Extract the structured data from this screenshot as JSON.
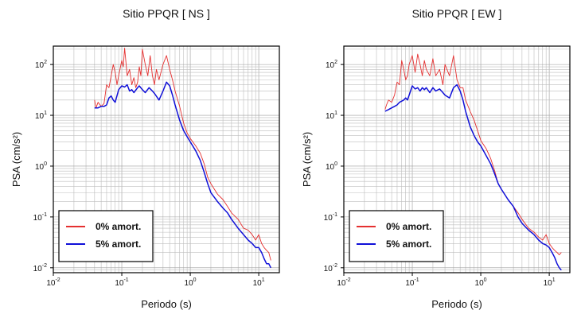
{
  "chart_data": [
    {
      "type": "line",
      "title": "Sitio PPQR [ NS ]",
      "xlabel": "Periodo (s)",
      "ylabel": "PSA (cm/s²)",
      "x_scale": "log",
      "y_scale": "log",
      "xlim": [
        0.01,
        20
      ],
      "ylim": [
        0.008,
        230
      ],
      "x_ticks": [
        {
          "value": 0.01,
          "base": "10",
          "exp": "-2"
        },
        {
          "value": 0.1,
          "base": "10",
          "exp": "-1"
        },
        {
          "value": 1,
          "base": "10",
          "exp": "0"
        },
        {
          "value": 10,
          "base": "10",
          "exp": "1"
        }
      ],
      "y_ticks": [
        {
          "value": 0.01,
          "base": "10",
          "exp": "-2"
        },
        {
          "value": 0.1,
          "base": "10",
          "exp": "-1"
        },
        {
          "value": 1,
          "base": "10",
          "exp": "0"
        },
        {
          "value": 10,
          "base": "10",
          "exp": "1"
        },
        {
          "value": 100,
          "base": "10",
          "exp": "2"
        }
      ],
      "grid": true,
      "legend_position": "bottom-left",
      "series": [
        {
          "name": "0% amort.",
          "color": "#e53030",
          "x": [
            0.04,
            0.042,
            0.045,
            0.05,
            0.055,
            0.06,
            0.065,
            0.07,
            0.075,
            0.08,
            0.085,
            0.09,
            0.1,
            0.105,
            0.11,
            0.12,
            0.13,
            0.14,
            0.15,
            0.16,
            0.17,
            0.18,
            0.19,
            0.2,
            0.22,
            0.24,
            0.26,
            0.28,
            0.3,
            0.32,
            0.35,
            0.4,
            0.45,
            0.5,
            0.55,
            0.6,
            0.7,
            0.8,
            0.9,
            1.0,
            1.2,
            1.4,
            1.6,
            1.8,
            2.0,
            2.5,
            3.0,
            3.5,
            4.0,
            5.0,
            6.0,
            7.0,
            8.0,
            9.0,
            10.0,
            11.0,
            12.0,
            13.0,
            14.0,
            15.0
          ],
          "y": [
            20,
            14,
            18,
            15,
            17,
            40,
            35,
            60,
            100,
            70,
            40,
            60,
            120,
            90,
            210,
            60,
            80,
            40,
            55,
            35,
            45,
            90,
            60,
            200,
            100,
            60,
            150,
            60,
            40,
            80,
            50,
            100,
            150,
            80,
            50,
            30,
            15,
            7,
            4.5,
            3.5,
            2.5,
            1.8,
            1.1,
            0.6,
            0.45,
            0.28,
            0.22,
            0.16,
            0.12,
            0.09,
            0.06,
            0.055,
            0.045,
            0.035,
            0.045,
            0.03,
            0.025,
            0.022,
            0.02,
            0.014
          ]
        },
        {
          "name": "5% amort.",
          "color": "#1010d8",
          "x": [
            0.04,
            0.045,
            0.05,
            0.055,
            0.06,
            0.065,
            0.07,
            0.075,
            0.08,
            0.09,
            0.1,
            0.11,
            0.12,
            0.13,
            0.14,
            0.15,
            0.17,
            0.18,
            0.2,
            0.22,
            0.25,
            0.28,
            0.3,
            0.35,
            0.4,
            0.45,
            0.5,
            0.55,
            0.6,
            0.7,
            0.8,
            0.9,
            1.0,
            1.2,
            1.4,
            1.6,
            1.8,
            2.0,
            2.5,
            3.0,
            3.5,
            4.0,
            5.0,
            6.0,
            7.0,
            8.0,
            9.0,
            10.0,
            11.0,
            12.0,
            13.0,
            14.0,
            15.0
          ],
          "y": [
            14,
            14,
            15,
            15,
            16,
            22,
            24,
            20,
            18,
            32,
            38,
            36,
            40,
            30,
            32,
            28,
            35,
            38,
            32,
            28,
            35,
            30,
            27,
            20,
            30,
            45,
            38,
            25,
            16,
            8,
            5,
            3.8,
            3.0,
            2.0,
            1.3,
            0.75,
            0.45,
            0.3,
            0.2,
            0.15,
            0.12,
            0.09,
            0.06,
            0.045,
            0.035,
            0.03,
            0.025,
            0.025,
            0.02,
            0.015,
            0.012,
            0.012,
            0.01
          ]
        }
      ]
    },
    {
      "type": "line",
      "title": "Sitio PPQR [ EW ]",
      "xlabel": "Periodo (s)",
      "ylabel": "PSA (cm/s²)",
      "x_scale": "log",
      "y_scale": "log",
      "xlim": [
        0.01,
        20
      ],
      "ylim": [
        0.008,
        230
      ],
      "x_ticks": [
        {
          "value": 0.01,
          "base": "10",
          "exp": "-2"
        },
        {
          "value": 0.1,
          "base": "10",
          "exp": "-1"
        },
        {
          "value": 1,
          "base": "10",
          "exp": "0"
        },
        {
          "value": 10,
          "base": "10",
          "exp": "1"
        }
      ],
      "y_ticks": [
        {
          "value": 0.01,
          "base": "10",
          "exp": "-2"
        },
        {
          "value": 0.1,
          "base": "10",
          "exp": "-1"
        },
        {
          "value": 1,
          "base": "10",
          "exp": "0"
        },
        {
          "value": 10,
          "base": "10",
          "exp": "1"
        },
        {
          "value": 100,
          "base": "10",
          "exp": "2"
        }
      ],
      "grid": true,
      "legend_position": "bottom-left",
      "series": [
        {
          "name": "0% amort.",
          "color": "#e53030",
          "x": [
            0.04,
            0.042,
            0.045,
            0.05,
            0.055,
            0.06,
            0.065,
            0.07,
            0.075,
            0.08,
            0.085,
            0.09,
            0.1,
            0.11,
            0.12,
            0.13,
            0.14,
            0.15,
            0.16,
            0.18,
            0.2,
            0.22,
            0.25,
            0.28,
            0.3,
            0.35,
            0.4,
            0.45,
            0.5,
            0.55,
            0.6,
            0.7,
            0.8,
            0.9,
            1.0,
            1.2,
            1.4,
            1.6,
            1.8,
            2.0,
            2.5,
            3.0,
            3.5,
            4.0,
            5.0,
            6.0,
            7.0,
            8.0,
            9.0,
            10.0,
            11.0,
            12.0,
            13.0,
            14.0,
            15.0
          ],
          "y": [
            13,
            16,
            20,
            18,
            25,
            45,
            40,
            120,
            80,
            50,
            60,
            100,
            150,
            70,
            160,
            100,
            60,
            120,
            80,
            60,
            130,
            60,
            80,
            40,
            100,
            60,
            150,
            50,
            35,
            35,
            20,
            12,
            8,
            5,
            3.2,
            2.2,
            1.4,
            0.8,
            0.45,
            0.35,
            0.22,
            0.16,
            0.12,
            0.09,
            0.06,
            0.05,
            0.04,
            0.035,
            0.045,
            0.03,
            0.025,
            0.022,
            0.02,
            0.018,
            0.02
          ]
        },
        {
          "name": "5% amort.",
          "color": "#1010d8",
          "x": [
            0.04,
            0.045,
            0.05,
            0.055,
            0.06,
            0.065,
            0.07,
            0.075,
            0.08,
            0.085,
            0.09,
            0.1,
            0.11,
            0.12,
            0.13,
            0.14,
            0.15,
            0.16,
            0.18,
            0.2,
            0.22,
            0.25,
            0.28,
            0.3,
            0.35,
            0.4,
            0.45,
            0.5,
            0.55,
            0.6,
            0.7,
            0.8,
            0.9,
            1.0,
            1.2,
            1.4,
            1.6,
            1.8,
            2.0,
            2.5,
            3.0,
            3.5,
            4.0,
            5.0,
            6.0,
            7.0,
            8.0,
            9.0,
            10.0,
            11.0,
            12.0,
            13.0,
            14.0,
            15.0
          ],
          "y": [
            12,
            13,
            14,
            15,
            16,
            18,
            19,
            20,
            22,
            20,
            25,
            38,
            33,
            35,
            30,
            35,
            32,
            35,
            28,
            35,
            30,
            33,
            28,
            25,
            22,
            35,
            40,
            30,
            20,
            12,
            6,
            4,
            3,
            2.5,
            1.6,
            1.1,
            0.7,
            0.45,
            0.35,
            0.22,
            0.16,
            0.1,
            0.075,
            0.055,
            0.045,
            0.035,
            0.03,
            0.028,
            0.025,
            0.02,
            0.016,
            0.012,
            0.01,
            0.009
          ]
        }
      ]
    }
  ]
}
